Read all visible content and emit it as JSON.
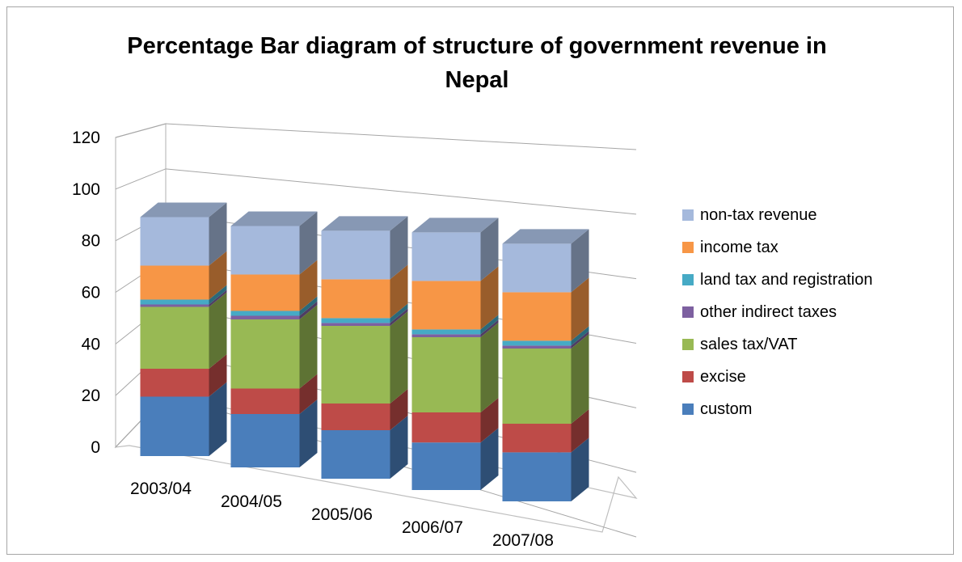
{
  "chart_data": {
    "type": "bar",
    "stacked": true,
    "three_d": true,
    "title": "Percentage Bar diagram of structure of government revenue in Nepal",
    "title_lines": [
      "Percentage Bar diagram of structure of government revenue in",
      "Nepal"
    ],
    "categories": [
      "2003/04",
      "2004/05",
      "2005/06",
      "2006/07",
      "2007/08"
    ],
    "ylim": [
      0,
      120
    ],
    "yticks": [
      0,
      20,
      40,
      60,
      80,
      100,
      120
    ],
    "grid": true,
    "legend_position": "right",
    "series": [
      {
        "name": "custom",
        "color": "#4a7ebb",
        "values": [
          24.5,
          22.0,
          20.0,
          19.6,
          20.2
        ]
      },
      {
        "name": "excise",
        "color": "#be4b48",
        "values": [
          11.5,
          10.5,
          11.0,
          12.4,
          11.8
        ]
      },
      {
        "name": "sales tax/VAT",
        "color": "#98b954",
        "values": [
          25.5,
          28.5,
          32.0,
          31.0,
          31.0
        ]
      },
      {
        "name": "other indirect taxes",
        "color": "#7d60a0",
        "values": [
          1.0,
          1.5,
          1.2,
          1.2,
          1.2
        ]
      },
      {
        "name": "land tax and registration",
        "color": "#46aac5",
        "values": [
          2.0,
          2.0,
          2.0,
          2.0,
          2.0
        ]
      },
      {
        "name": "income tax",
        "color": "#f79646",
        "values": [
          14.0,
          15.0,
          16.0,
          20.0,
          20.0
        ]
      },
      {
        "name": "non-tax revenue",
        "color": "#a5b9dc",
        "values": [
          20.0,
          20.0,
          20.0,
          20.0,
          20.0
        ]
      }
    ]
  }
}
